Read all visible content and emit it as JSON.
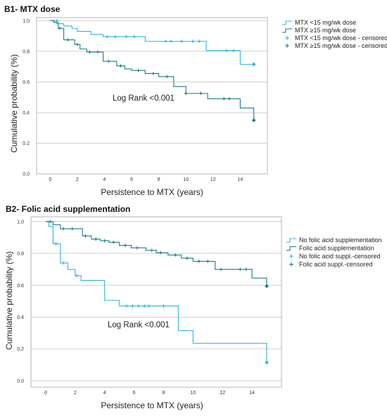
{
  "colors": {
    "light": "#2fb4e0",
    "dark": "#197b86"
  },
  "chart_data": [
    {
      "type": "line",
      "title": "B1- MTX dose",
      "xlabel": "Persistence to MTX (years)",
      "ylabel": "Cumulative probability (%)",
      "xlim": [
        -1,
        16
      ],
      "ylim": [
        0,
        1.02
      ],
      "xticks": [
        "0",
        "2",
        "4",
        "6",
        "8",
        "10",
        "12",
        "14"
      ],
      "yticks": [
        "0.0",
        "0.2",
        "0.4",
        "0.6",
        "0.8",
        "1.0"
      ],
      "grid": true,
      "legend_position": "top-right",
      "legend": [
        "MTX <15 mg/wk dose",
        "MTX ≥15 mg/wk dose",
        "MTX <15 mg/wk dose - censored",
        "MTX ≥15 mg/wk dose - censored"
      ],
      "annotation": "Log Rank <0.001",
      "series": [
        {
          "name": "MTX <15 mg/wk dose",
          "color": "light",
          "steps": [
            [
              0,
              1.0
            ],
            [
              0.25,
              0.99
            ],
            [
              0.6,
              0.98
            ],
            [
              1.0,
              0.965
            ],
            [
              1.6,
              0.95
            ],
            [
              2.0,
              0.93
            ],
            [
              3.0,
              0.91
            ],
            [
              3.9,
              0.895
            ],
            [
              7.0,
              0.865
            ],
            [
              11.5,
              0.805
            ],
            [
              14.0,
              0.715
            ],
            [
              15.0,
              0.715
            ]
          ],
          "censored": [
            [
              0.5,
              1.0
            ],
            [
              4.2,
              0.895
            ],
            [
              4.8,
              0.895
            ],
            [
              5.6,
              0.895
            ],
            [
              6.2,
              0.895
            ],
            [
              8.5,
              0.865
            ],
            [
              8.9,
              0.865
            ],
            [
              9.7,
              0.865
            ],
            [
              10.5,
              0.865
            ],
            [
              11.0,
              0.865
            ],
            [
              13.0,
              0.805
            ],
            [
              13.5,
              0.805
            ],
            [
              15.0,
              0.715
            ]
          ]
        },
        {
          "name": "MTX ≥15 mg/wk dose",
          "color": "dark",
          "steps": [
            [
              0,
              1.0
            ],
            [
              0.3,
              0.99
            ],
            [
              0.5,
              0.98
            ],
            [
              0.6,
              0.95
            ],
            [
              1.0,
              0.875
            ],
            [
              1.8,
              0.845
            ],
            [
              2.2,
              0.815
            ],
            [
              2.7,
              0.795
            ],
            [
              3.9,
              0.735
            ],
            [
              4.9,
              0.705
            ],
            [
              5.5,
              0.685
            ],
            [
              6.0,
              0.675
            ],
            [
              7.0,
              0.655
            ],
            [
              8.0,
              0.635
            ],
            [
              9.1,
              0.57
            ],
            [
              10.0,
              0.525
            ],
            [
              11.6,
              0.49
            ],
            [
              14.0,
              0.43
            ],
            [
              15.0,
              0.35
            ]
          ],
          "censored": [
            [
              0.7,
              0.95
            ],
            [
              1.3,
              0.875
            ],
            [
              2.0,
              0.845
            ],
            [
              2.9,
              0.795
            ],
            [
              3.5,
              0.795
            ],
            [
              4.3,
              0.735
            ],
            [
              5.2,
              0.705
            ],
            [
              6.5,
              0.675
            ],
            [
              7.6,
              0.655
            ],
            [
              8.6,
              0.635
            ],
            [
              10.0,
              0.525
            ],
            [
              11.1,
              0.525
            ],
            [
              12.8,
              0.49
            ],
            [
              13.2,
              0.49
            ],
            [
              15.0,
              0.35
            ]
          ]
        }
      ]
    },
    {
      "type": "line",
      "title": "B2- Folic acid supplementation",
      "xlabel": "Persistence to MTX (years)",
      "ylabel": "Cumulative probability (%)",
      "xlim": [
        -1,
        16
      ],
      "ylim": [
        -0.04,
        1.03
      ],
      "xticks": [
        "0",
        "2",
        "4",
        "6",
        "8",
        "10",
        "12",
        "14"
      ],
      "yticks": [
        "0.0",
        "0.2",
        "0.4",
        "0.6",
        "0.8",
        "1.0"
      ],
      "grid": true,
      "legend_position": "right",
      "legend": [
        "No folic acid supplementation",
        "Folic acid supplementation",
        "No folic acid suppl.-censored",
        "Folic acid suppl.-censored"
      ],
      "annotation": "Log Rank <0.001",
      "series": [
        {
          "name": "No folic acid supplementation",
          "color": "light",
          "steps": [
            [
              0,
              1.0
            ],
            [
              0.2,
              0.97
            ],
            [
              0.5,
              0.86
            ],
            [
              1.0,
              0.74
            ],
            [
              1.5,
              0.7
            ],
            [
              2.0,
              0.66
            ],
            [
              2.4,
              0.63
            ],
            [
              4.0,
              0.505
            ],
            [
              5.0,
              0.47
            ],
            [
              9.0,
              0.315
            ],
            [
              10.0,
              0.235
            ],
            [
              15.0,
              0.115
            ]
          ],
          "censored": [
            [
              0.7,
              0.86
            ],
            [
              1.2,
              0.74
            ],
            [
              2.1,
              0.66
            ],
            [
              5.5,
              0.47
            ],
            [
              5.9,
              0.47
            ],
            [
              6.3,
              0.47
            ],
            [
              6.7,
              0.47
            ],
            [
              7.0,
              0.47
            ],
            [
              8.0,
              0.47
            ],
            [
              15.0,
              0.115
            ]
          ]
        },
        {
          "name": "Folic acid supplementation",
          "color": "dark",
          "steps": [
            [
              0,
              1.0
            ],
            [
              0.5,
              0.98
            ],
            [
              1.0,
              0.955
            ],
            [
              2.5,
              0.91
            ],
            [
              3.1,
              0.89
            ],
            [
              3.7,
              0.88
            ],
            [
              4.3,
              0.87
            ],
            [
              5.0,
              0.85
            ],
            [
              5.8,
              0.835
            ],
            [
              6.8,
              0.82
            ],
            [
              7.5,
              0.805
            ],
            [
              8.3,
              0.79
            ],
            [
              9.2,
              0.77
            ],
            [
              10.0,
              0.75
            ],
            [
              11.5,
              0.7
            ],
            [
              12.8,
              0.7
            ],
            [
              14.0,
              0.645
            ],
            [
              15.0,
              0.595
            ]
          ],
          "censored": [
            [
              0.3,
              1.0
            ],
            [
              1.2,
              0.955
            ],
            [
              1.8,
              0.955
            ],
            [
              2.7,
              0.91
            ],
            [
              3.4,
              0.89
            ],
            [
              4.0,
              0.88
            ],
            [
              4.6,
              0.87
            ],
            [
              5.4,
              0.85
            ],
            [
              6.2,
              0.835
            ],
            [
              7.2,
              0.82
            ],
            [
              7.8,
              0.805
            ],
            [
              8.8,
              0.79
            ],
            [
              9.6,
              0.77
            ],
            [
              10.4,
              0.75
            ],
            [
              11.0,
              0.75
            ],
            [
              11.9,
              0.7
            ],
            [
              13.2,
              0.7
            ],
            [
              13.6,
              0.7
            ],
            [
              15.0,
              0.595
            ]
          ]
        }
      ]
    }
  ]
}
